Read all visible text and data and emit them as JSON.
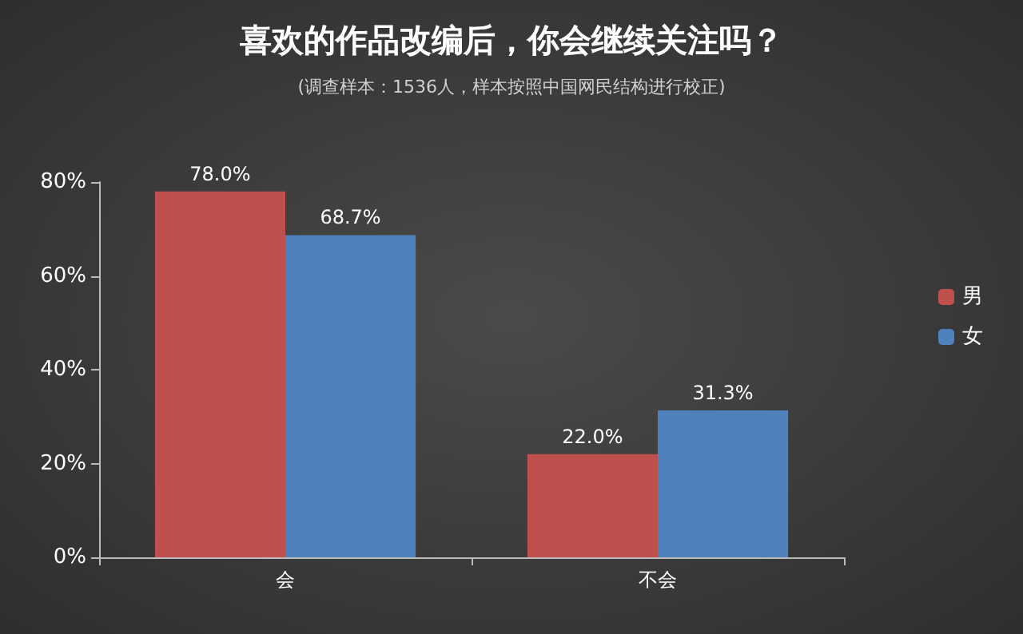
{
  "chart_data": {
    "type": "bar",
    "title": "喜欢的作品改编后，你会继续关注吗？",
    "subtitle": "(调查样本：1536人，样本按照中国网民结构进行校正)",
    "categories": [
      "会",
      "不会"
    ],
    "series": [
      {
        "name": "男",
        "color": "#c0504d",
        "values": [
          78.0,
          22.0
        ],
        "value_labels": [
          "78.0%",
          "22.0%"
        ]
      },
      {
        "name": "女",
        "color": "#4f81bd",
        "values": [
          68.7,
          31.3
        ],
        "value_labels": [
          "68.7%",
          "31.3%"
        ]
      }
    ],
    "ylim": [
      0,
      80
    ],
    "yticks": [
      {
        "value": 0,
        "label": "0%"
      },
      {
        "value": 20,
        "label": "20%"
      },
      {
        "value": 40,
        "label": "40%"
      },
      {
        "value": 60,
        "label": "60%"
      },
      {
        "value": 80,
        "label": "80%"
      }
    ],
    "grid": false,
    "legend": "right"
  }
}
